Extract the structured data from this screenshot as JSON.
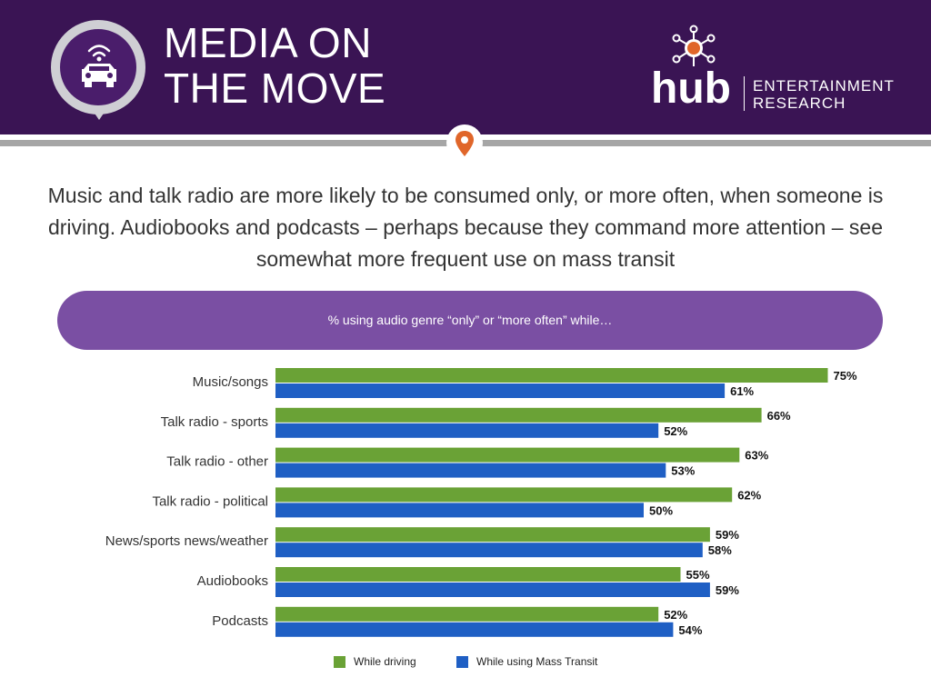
{
  "header": {
    "title_line1": "MEDIA ON",
    "title_line2": "THE MOVE",
    "logo_word": "hub",
    "logo_line1": "ENTERTAINMENT",
    "logo_line2": "RESEARCH"
  },
  "subtitle": "Music and talk radio are more likely to be consumed only, or more often, when someone is driving.  Audiobooks and podcasts – perhaps because they command more attention – see somewhat more frequent use on mass transit",
  "chart_data": {
    "type": "bar",
    "orientation": "horizontal",
    "title": "% using audio genre “only” or “more often” while…",
    "categories": [
      "Music/songs",
      "Talk radio - sports",
      "Talk radio - other",
      "Talk radio - political",
      "News/sports news/weather",
      "Audiobooks",
      "Podcasts"
    ],
    "series": [
      {
        "name": "While driving",
        "values": [
          75,
          66,
          63,
          62,
          59,
          55,
          52
        ],
        "color": "#6aa236"
      },
      {
        "name": "While using Mass Transit",
        "values": [
          61,
          52,
          53,
          50,
          58,
          59,
          54
        ],
        "color": "#1f5fc4"
      }
    ],
    "value_suffix": "%",
    "legend_position": "bottom",
    "grid": false
  },
  "colors": {
    "header_bg": "#3a1454",
    "pill_bg": "#7a4fa3",
    "driving": "#6aa236",
    "transit": "#1f5fc4",
    "pin": "#e0662a"
  },
  "icons": [
    "car-location-icon",
    "hub-logo-icon",
    "location-pin-icon"
  ]
}
